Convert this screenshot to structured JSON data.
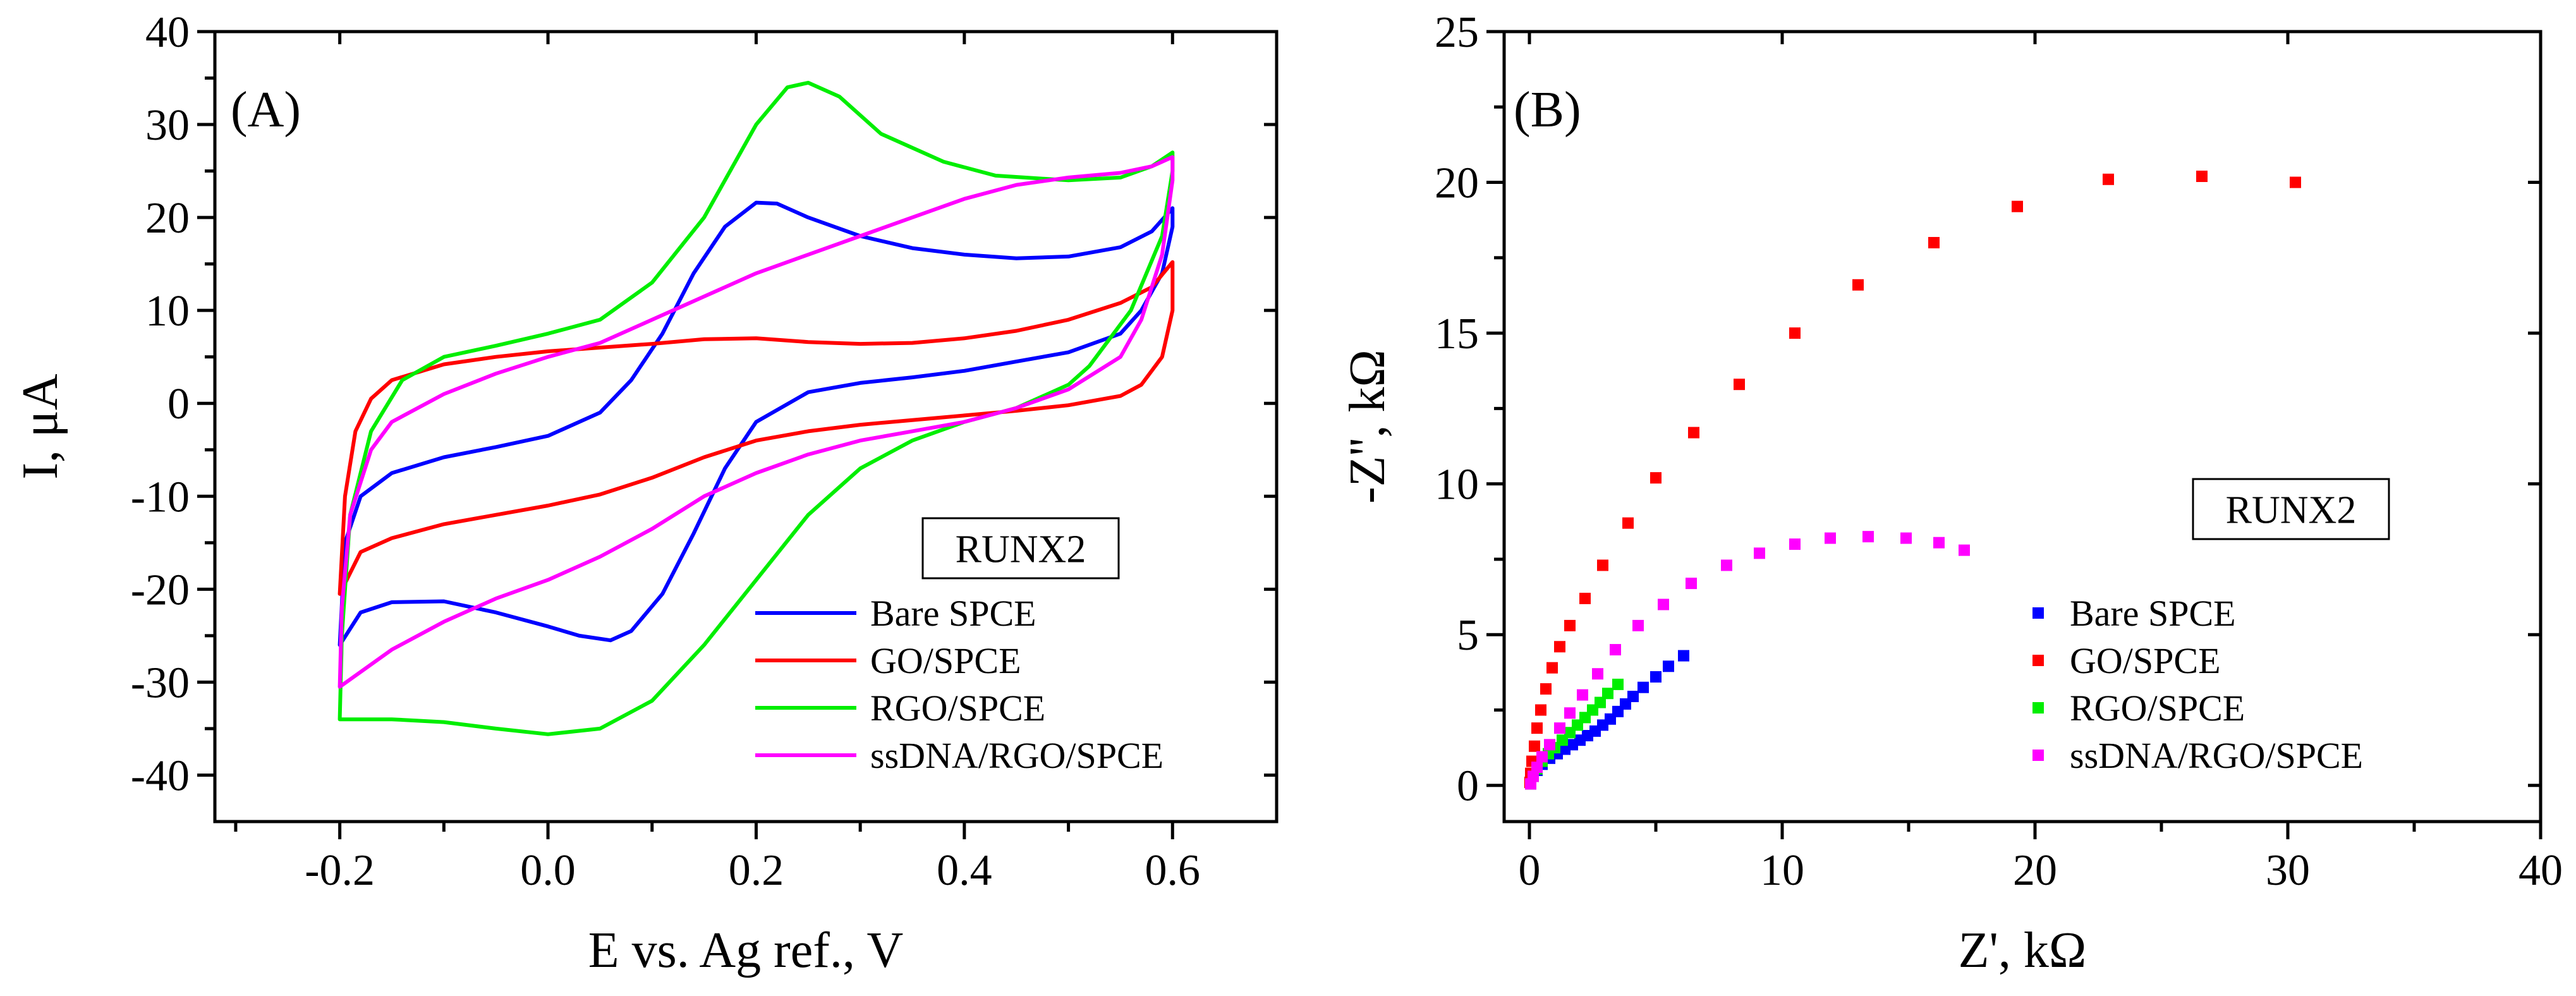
{
  "chart_data": [
    {
      "type": "line",
      "panel_label": "(A)",
      "xlabel": "E vs. Ag ref., V",
      "ylabel": "I, μA",
      "xlim": [
        -0.32,
        0.7
      ],
      "ylim": [
        -45,
        40
      ],
      "x_ticks": [
        -0.2,
        0.0,
        0.2,
        0.4,
        0.6
      ],
      "x_tick_labels": [
        "-0.2",
        "0.0",
        "0.2",
        "0.4",
        "0.6"
      ],
      "y_ticks": [
        -40,
        -30,
        -20,
        -10,
        0,
        10,
        20,
        30,
        40
      ],
      "y_tick_labels": [
        "-40",
        "-30",
        "-20",
        "-10",
        "0",
        "10",
        "20",
        "30",
        "40"
      ],
      "annotation": "RUNX2",
      "legend_position": "bottom-right",
      "series": [
        {
          "name": "Bare SPCE",
          "color": "#0000ff",
          "points": [
            [
              -0.2,
              -26
            ],
            [
              -0.195,
              -15
            ],
            [
              -0.18,
              -10
            ],
            [
              -0.15,
              -7.5
            ],
            [
              -0.1,
              -5.8
            ],
            [
              -0.05,
              -4.7
            ],
            [
              0.0,
              -3.5
            ],
            [
              0.05,
              -1.0
            ],
            [
              0.08,
              2.5
            ],
            [
              0.11,
              7.5
            ],
            [
              0.14,
              14
            ],
            [
              0.17,
              19
            ],
            [
              0.2,
              21.6
            ],
            [
              0.22,
              21.5
            ],
            [
              0.25,
              20
            ],
            [
              0.3,
              18
            ],
            [
              0.35,
              16.7
            ],
            [
              0.4,
              16
            ],
            [
              0.45,
              15.6
            ],
            [
              0.5,
              15.8
            ],
            [
              0.55,
              16.8
            ],
            [
              0.58,
              18.5
            ],
            [
              0.6,
              21
            ],
            [
              0.6,
              19
            ],
            [
              0.59,
              14
            ],
            [
              0.57,
              10
            ],
            [
              0.55,
              7.5
            ],
            [
              0.5,
              5.5
            ],
            [
              0.45,
              4.5
            ],
            [
              0.4,
              3.5
            ],
            [
              0.35,
              2.8
            ],
            [
              0.3,
              2.2
            ],
            [
              0.25,
              1.2
            ],
            [
              0.2,
              -2
            ],
            [
              0.17,
              -7
            ],
            [
              0.14,
              -14
            ],
            [
              0.11,
              -20.5
            ],
            [
              0.08,
              -24.5
            ],
            [
              0.06,
              -25.5
            ],
            [
              0.03,
              -25
            ],
            [
              0.0,
              -24
            ],
            [
              -0.05,
              -22.5
            ],
            [
              -0.1,
              -21.3
            ],
            [
              -0.15,
              -21.4
            ],
            [
              -0.18,
              -22.5
            ],
            [
              -0.2,
              -26
            ]
          ]
        },
        {
          "name": "GO/SPCE",
          "color": "#ff0000",
          "points": [
            [
              -0.2,
              -20.5
            ],
            [
              -0.195,
              -10
            ],
            [
              -0.185,
              -3
            ],
            [
              -0.17,
              0.5
            ],
            [
              -0.15,
              2.5
            ],
            [
              -0.1,
              4.2
            ],
            [
              -0.05,
              5
            ],
            [
              0.0,
              5.6
            ],
            [
              0.05,
              6
            ],
            [
              0.1,
              6.4
            ],
            [
              0.15,
              6.9
            ],
            [
              0.2,
              7
            ],
            [
              0.25,
              6.6
            ],
            [
              0.3,
              6.4
            ],
            [
              0.35,
              6.5
            ],
            [
              0.4,
              7
            ],
            [
              0.45,
              7.8
            ],
            [
              0.5,
              9
            ],
            [
              0.55,
              10.8
            ],
            [
              0.58,
              12.5
            ],
            [
              0.6,
              15.2
            ],
            [
              0.6,
              10
            ],
            [
              0.59,
              5
            ],
            [
              0.57,
              2
            ],
            [
              0.55,
              0.8
            ],
            [
              0.5,
              -0.2
            ],
            [
              0.45,
              -0.8
            ],
            [
              0.4,
              -1.3
            ],
            [
              0.35,
              -1.8
            ],
            [
              0.3,
              -2.3
            ],
            [
              0.25,
              -3
            ],
            [
              0.2,
              -4
            ],
            [
              0.15,
              -5.8
            ],
            [
              0.1,
              -8
            ],
            [
              0.05,
              -9.8
            ],
            [
              0.0,
              -11
            ],
            [
              -0.05,
              -12
            ],
            [
              -0.1,
              -13
            ],
            [
              -0.15,
              -14.5
            ],
            [
              -0.18,
              -16
            ],
            [
              -0.2,
              -20.5
            ]
          ]
        },
        {
          "name": "RGO/SPCE",
          "color": "#00ee00",
          "points": [
            [
              -0.2,
              -34
            ],
            [
              -0.198,
              -25
            ],
            [
              -0.19,
              -12
            ],
            [
              -0.17,
              -3
            ],
            [
              -0.14,
              2.5
            ],
            [
              -0.1,
              5
            ],
            [
              -0.05,
              6.2
            ],
            [
              0.0,
              7.5
            ],
            [
              0.05,
              9
            ],
            [
              0.1,
              13
            ],
            [
              0.15,
              20
            ],
            [
              0.2,
              30
            ],
            [
              0.23,
              34
            ],
            [
              0.25,
              34.5
            ],
            [
              0.28,
              33
            ],
            [
              0.32,
              29
            ],
            [
              0.38,
              26
            ],
            [
              0.43,
              24.5
            ],
            [
              0.5,
              24
            ],
            [
              0.55,
              24.3
            ],
            [
              0.58,
              25.5
            ],
            [
              0.6,
              27
            ],
            [
              0.6,
              25
            ],
            [
              0.59,
              18
            ],
            [
              0.56,
              10
            ],
            [
              0.52,
              4
            ],
            [
              0.5,
              2
            ],
            [
              0.45,
              -0.5
            ],
            [
              0.4,
              -2
            ],
            [
              0.35,
              -4
            ],
            [
              0.3,
              -7
            ],
            [
              0.25,
              -12
            ],
            [
              0.2,
              -19
            ],
            [
              0.15,
              -26
            ],
            [
              0.1,
              -32
            ],
            [
              0.05,
              -35
            ],
            [
              0.0,
              -35.6
            ],
            [
              -0.05,
              -35
            ],
            [
              -0.1,
              -34.3
            ],
            [
              -0.15,
              -34
            ],
            [
              -0.2,
              -34
            ]
          ]
        },
        {
          "name": "ssDNA/RGO/SPCE",
          "color": "#ff00ff",
          "points": [
            [
              -0.2,
              -30.5
            ],
            [
              -0.198,
              -22
            ],
            [
              -0.19,
              -12
            ],
            [
              -0.17,
              -5
            ],
            [
              -0.15,
              -2
            ],
            [
              -0.1,
              1
            ],
            [
              -0.05,
              3.2
            ],
            [
              0.0,
              5
            ],
            [
              0.05,
              6.5
            ],
            [
              0.1,
              9
            ],
            [
              0.15,
              11.5
            ],
            [
              0.2,
              14
            ],
            [
              0.25,
              16
            ],
            [
              0.3,
              18
            ],
            [
              0.35,
              20
            ],
            [
              0.4,
              22
            ],
            [
              0.45,
              23.5
            ],
            [
              0.5,
              24.3
            ],
            [
              0.55,
              24.8
            ],
            [
              0.58,
              25.5
            ],
            [
              0.6,
              26.5
            ],
            [
              0.6,
              24
            ],
            [
              0.59,
              16
            ],
            [
              0.57,
              9
            ],
            [
              0.55,
              5
            ],
            [
              0.5,
              1.5
            ],
            [
              0.45,
              -0.5
            ],
            [
              0.4,
              -2
            ],
            [
              0.35,
              -3
            ],
            [
              0.3,
              -4
            ],
            [
              0.25,
              -5.5
            ],
            [
              0.2,
              -7.5
            ],
            [
              0.15,
              -10
            ],
            [
              0.1,
              -13.5
            ],
            [
              0.05,
              -16.5
            ],
            [
              0.0,
              -19
            ],
            [
              -0.05,
              -21
            ],
            [
              -0.1,
              -23.5
            ],
            [
              -0.15,
              -26.5
            ],
            [
              -0.2,
              -30.5
            ]
          ]
        }
      ]
    },
    {
      "type": "scatter",
      "panel_label": "(B)",
      "xlabel": "Z', kΩ",
      "ylabel": "-Z'', kΩ",
      "xlim": [
        -1,
        40
      ],
      "ylim": [
        -1.2,
        25
      ],
      "x_ticks": [
        0,
        10,
        20,
        30,
        40
      ],
      "x_tick_labels": [
        "0",
        "10",
        "20",
        "30",
        "40"
      ],
      "y_ticks": [
        0,
        5,
        10,
        15,
        20,
        25
      ],
      "y_tick_labels": [
        "0",
        "5",
        "10",
        "15",
        "20",
        "25"
      ],
      "annotation": "RUNX2",
      "legend_position": "bottom-right",
      "series": [
        {
          "name": "Bare SPCE",
          "color": "#0000ff",
          "points": [
            [
              0.05,
              0.05
            ],
            [
              0.15,
              0.3
            ],
            [
              0.3,
              0.5
            ],
            [
              0.5,
              0.7
            ],
            [
              0.8,
              0.9
            ],
            [
              1.1,
              1.05
            ],
            [
              1.4,
              1.2
            ],
            [
              1.7,
              1.35
            ],
            [
              2.0,
              1.5
            ],
            [
              2.3,
              1.65
            ],
            [
              2.6,
              1.8
            ],
            [
              2.9,
              2.0
            ],
            [
              3.2,
              2.2
            ],
            [
              3.5,
              2.45
            ],
            [
              3.8,
              2.7
            ],
            [
              4.1,
              2.95
            ],
            [
              4.5,
              3.25
            ],
            [
              5.0,
              3.6
            ],
            [
              5.5,
              3.95
            ],
            [
              6.1,
              4.3
            ]
          ]
        },
        {
          "name": "GO/SPCE",
          "color": "#ff0000",
          "points": [
            [
              0.02,
              0.1
            ],
            [
              0.05,
              0.4
            ],
            [
              0.1,
              0.8
            ],
            [
              0.2,
              1.3
            ],
            [
              0.3,
              1.9
            ],
            [
              0.45,
              2.5
            ],
            [
              0.65,
              3.2
            ],
            [
              0.9,
              3.9
            ],
            [
              1.2,
              4.6
            ],
            [
              1.6,
              5.3
            ],
            [
              2.2,
              6.2
            ],
            [
              2.9,
              7.3
            ],
            [
              3.9,
              8.7
            ],
            [
              5.0,
              10.2
            ],
            [
              6.5,
              11.7
            ],
            [
              8.3,
              13.3
            ],
            [
              10.5,
              15.0
            ],
            [
              13.0,
              16.6
            ],
            [
              16.0,
              18.0
            ],
            [
              19.3,
              19.2
            ],
            [
              22.9,
              20.1
            ],
            [
              26.6,
              20.2
            ],
            [
              30.3,
              20.0
            ]
          ]
        },
        {
          "name": "RGO/SPCE",
          "color": "#00ee00",
          "points": [
            [
              0.05,
              0.05
            ],
            [
              0.15,
              0.3
            ],
            [
              0.3,
              0.55
            ],
            [
              0.5,
              0.8
            ],
            [
              0.75,
              1.05
            ],
            [
              1.0,
              1.25
            ],
            [
              1.3,
              1.5
            ],
            [
              1.6,
              1.75
            ],
            [
              1.9,
              2.0
            ],
            [
              2.2,
              2.25
            ],
            [
              2.5,
              2.5
            ],
            [
              2.8,
              2.75
            ],
            [
              3.1,
              3.05
            ],
            [
              3.5,
              3.35
            ]
          ]
        },
        {
          "name": "ssDNA/RGO/SPCE",
          "color": "#ff00ff",
          "points": [
            [
              0.05,
              0.05
            ],
            [
              0.15,
              0.3
            ],
            [
              0.3,
              0.6
            ],
            [
              0.5,
              0.95
            ],
            [
              0.8,
              1.35
            ],
            [
              1.2,
              1.9
            ],
            [
              1.6,
              2.4
            ],
            [
              2.1,
              3.0
            ],
            [
              2.7,
              3.7
            ],
            [
              3.4,
              4.5
            ],
            [
              4.3,
              5.3
            ],
            [
              5.3,
              6.0
            ],
            [
              6.4,
              6.7
            ],
            [
              7.8,
              7.3
            ],
            [
              9.1,
              7.7
            ],
            [
              10.5,
              8.0
            ],
            [
              11.9,
              8.2
            ],
            [
              13.4,
              8.25
            ],
            [
              14.9,
              8.2
            ],
            [
              16.2,
              8.05
            ],
            [
              17.2,
              7.8
            ]
          ]
        }
      ]
    }
  ]
}
